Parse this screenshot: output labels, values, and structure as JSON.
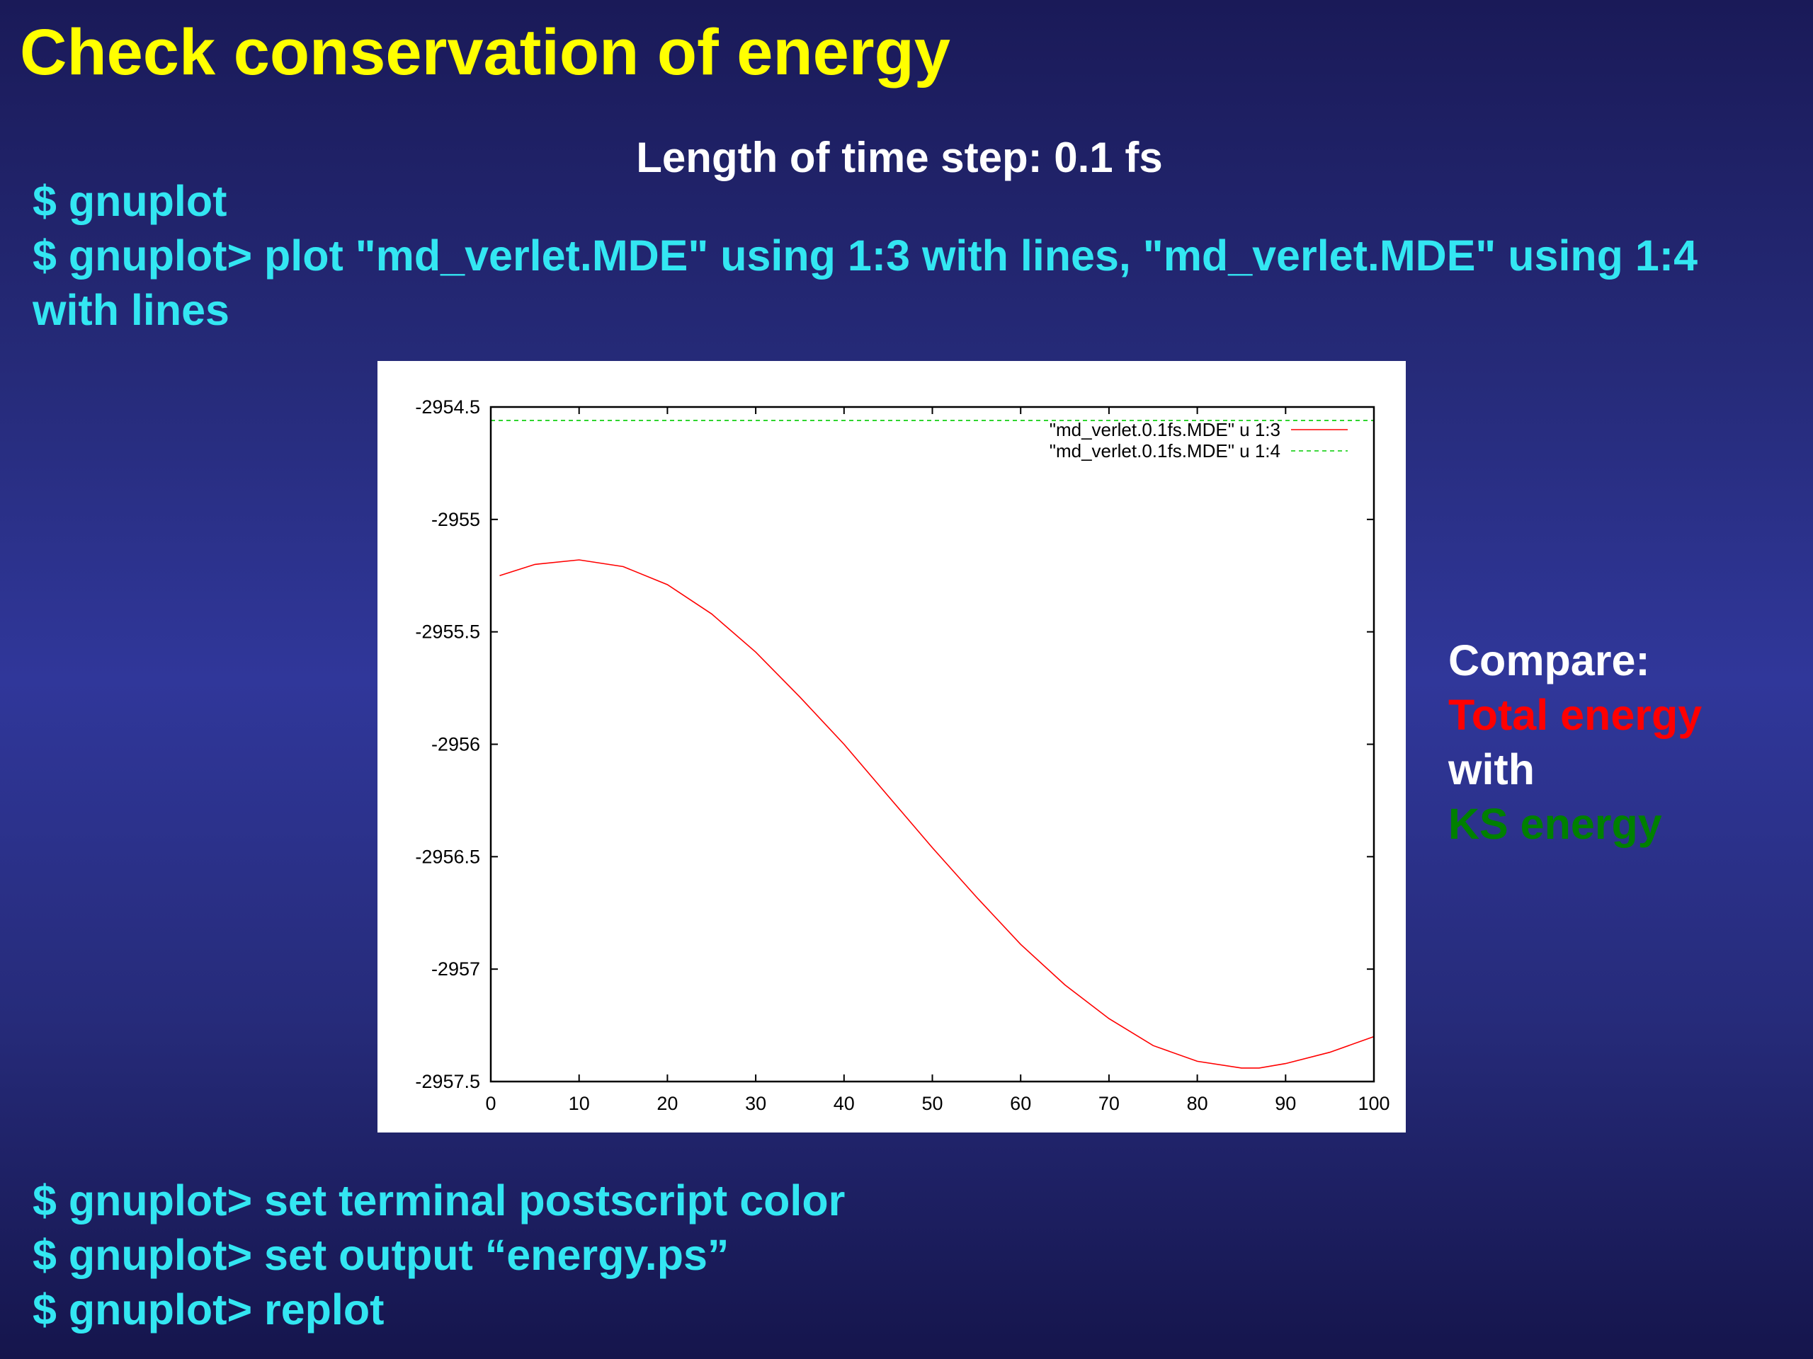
{
  "slide": {
    "title": "Check conservation of energy",
    "subtitle": "Length of time step: 0.1 fs"
  },
  "commands_top": [
    "$ gnuplot",
    "$ gnuplot> plot \"md_verlet.MDE\" using 1:3 with lines, \"md_verlet.MDE\" using 1:4",
    "with lines"
  ],
  "commands_bottom": [
    "$ gnuplot> set terminal postscript color",
    "$ gnuplot> set output “energy.ps”",
    "$ gnuplot> replot"
  ],
  "compare": {
    "label": "Compare:",
    "total": "Total energy",
    "with": "with",
    "ks": "KS energy",
    "colors": {
      "total": "#ff0000",
      "ks": "#008000",
      "label": "#ffffff"
    }
  },
  "chart_data": {
    "type": "line",
    "title": "",
    "xlabel": "",
    "ylabel": "",
    "xlim": [
      0,
      100
    ],
    "ylim": [
      -2957.5,
      -2954.5
    ],
    "xticks": [
      0,
      10,
      20,
      30,
      40,
      50,
      60,
      70,
      80,
      90,
      100
    ],
    "yticks": [
      -2954.5,
      -2955,
      -2955.5,
      -2956,
      -2956.5,
      -2957,
      -2957.5
    ],
    "ytick_labels": [
      "-2954.5",
      "-2955",
      "-2955.5",
      "-2956",
      "-2956.5",
      "-2957",
      "-2957.5"
    ],
    "grid": false,
    "legend_position": "top-right",
    "series": [
      {
        "name": "\"md_verlet.0.1fs.MDE\" u 1:3",
        "color": "#ff0000",
        "dash": "solid",
        "x": [
          1,
          5,
          10,
          15,
          20,
          25,
          30,
          35,
          40,
          45,
          50,
          55,
          60,
          65,
          70,
          75,
          80,
          85,
          87,
          90,
          95,
          100
        ],
        "y": [
          -2955.25,
          -2955.2,
          -2955.18,
          -2955.21,
          -2955.29,
          -2955.42,
          -2955.59,
          -2955.79,
          -2956.0,
          -2956.23,
          -2956.46,
          -2956.68,
          -2956.89,
          -2957.07,
          -2957.22,
          -2957.34,
          -2957.41,
          -2957.44,
          -2957.44,
          -2957.42,
          -2957.37,
          -2957.3
        ]
      },
      {
        "name": "\"md_verlet.0.1fs.MDE\" u 1:4",
        "color": "#00cc00",
        "dash": "dashed",
        "x": [
          0,
          100
        ],
        "y": [
          -2954.56,
          -2954.56
        ]
      }
    ]
  }
}
